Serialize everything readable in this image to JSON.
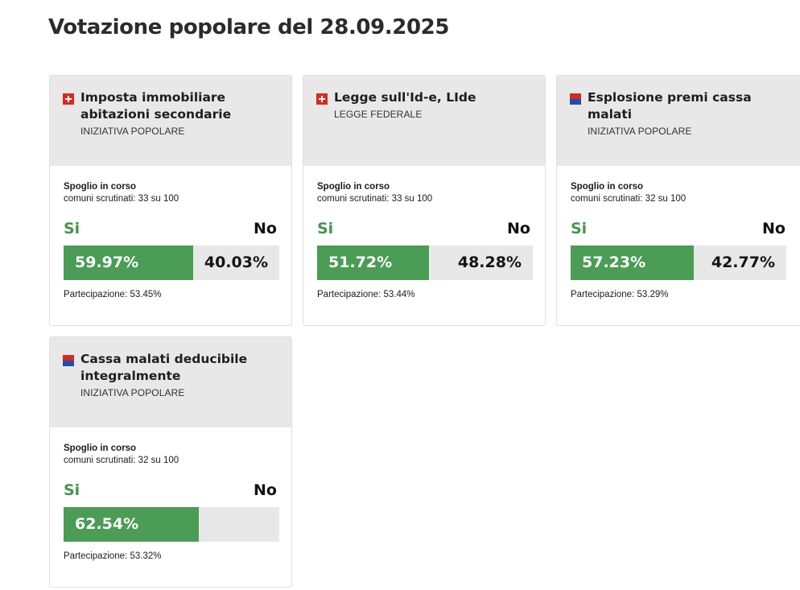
{
  "page": {
    "title": "Votazione popolare del 28.09.2025"
  },
  "colors": {
    "yes_green": "#4b9c55",
    "bar_background": "#e8e8e8",
    "card_header": "#e8e8e8",
    "swiss_red": "#da291c",
    "ticino_red": "#d52b1e",
    "ticino_blue": "#1f4eb4"
  },
  "votes": [
    {
      "flag": "swiss-flag-icon",
      "title": "Imposta immobiliare abitazioni secondarie",
      "type": "INIZIATIVA POPOLARE",
      "status": "Spoglio in corso",
      "progress": "comuni scrutinati: 33 su 100",
      "yes_label": "Si",
      "no_label": "No",
      "yes_percent": "59.97%",
      "no_percent": "40.03%",
      "yes_share": 59.97,
      "participation": "Partecipazione: 53.45%"
    },
    {
      "flag": "swiss-flag-icon",
      "title": "Legge sull'Id-e, LIde",
      "type": "LEGGE FEDERALE",
      "status": "Spoglio in corso",
      "progress": "comuni scrutinati: 33 su 100",
      "yes_label": "Si",
      "no_label": "No",
      "yes_percent": "51.72%",
      "no_percent": "48.28%",
      "yes_share": 51.72,
      "participation": "Partecipazione: 53.44%"
    },
    {
      "flag": "ticino-flag-icon",
      "title": "Esplosione premi cassa malati",
      "type": "INIZIATIVA POPOLARE",
      "status": "Spoglio in corso",
      "progress": "comuni scrutinati: 32 su 100",
      "yes_label": "Si",
      "no_label": "No",
      "yes_percent": "57.23%",
      "no_percent": "42.77%",
      "yes_share": 57.23,
      "participation": "Partecipazione: 53.29%"
    },
    {
      "flag": "ticino-flag-icon",
      "title": "Cassa malati deducibile integralmente",
      "type": "INIZIATIVA POPOLARE",
      "status": "Spoglio in corso",
      "progress": "comuni scrutinati: 32 su 100",
      "yes_label": "Si",
      "no_label": "No",
      "yes_percent": "62.54%",
      "no_percent": "",
      "yes_share": 62.54,
      "participation": "Partecipazione: 53.32%"
    }
  ]
}
